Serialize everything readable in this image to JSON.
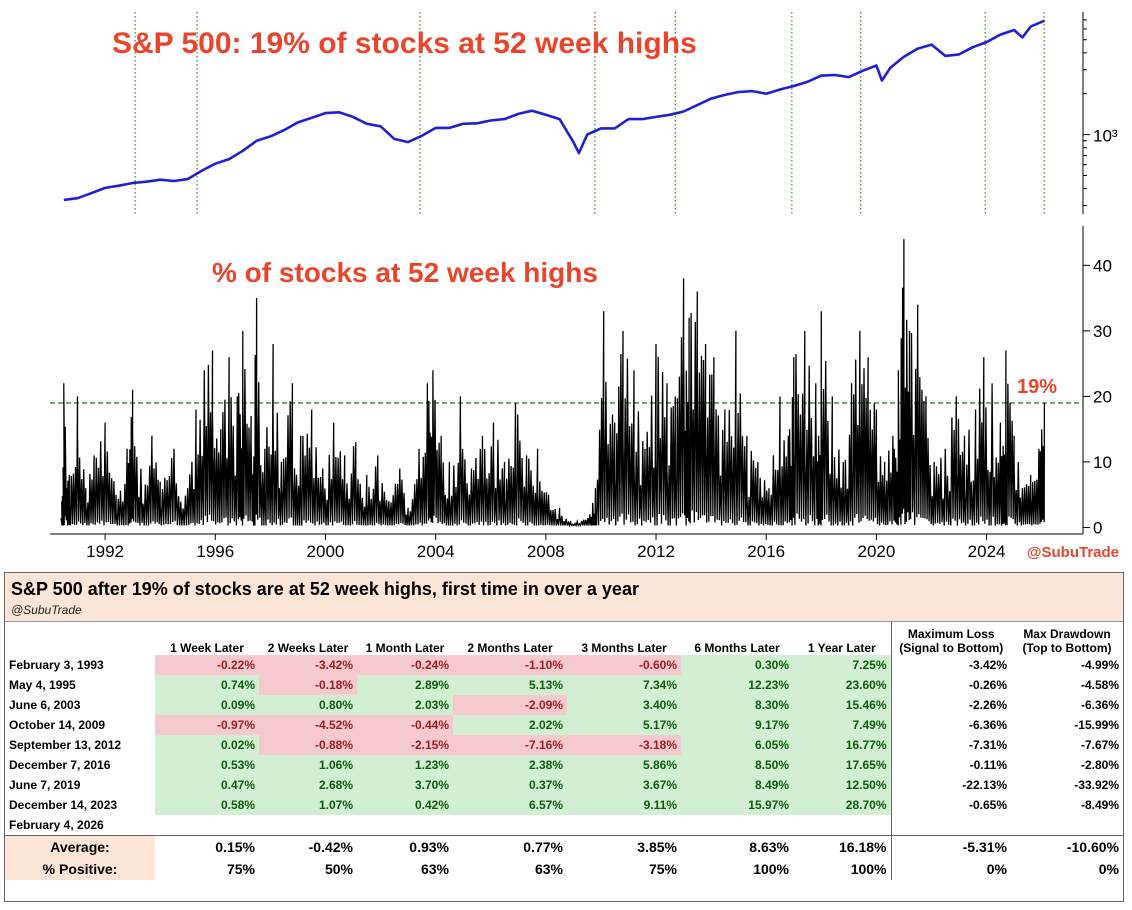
{
  "chart_data": [
    {
      "type": "line",
      "title": "S&P 500: 19% of stocks at 52 week highs",
      "yscale": "log",
      "y_tick_labels": [
        "10³"
      ],
      "signal_years": [
        1993.09,
        1995.34,
        2003.43,
        2009.78,
        2012.7,
        2016.93,
        2019.43,
        2023.95,
        2026.09
      ],
      "x": [
        1990.5,
        1991.0,
        1991.5,
        1992.0,
        1992.5,
        1993.0,
        1993.5,
        1994.0,
        1994.5,
        1995.0,
        1995.5,
        1996.0,
        1996.5,
        1997.0,
        1997.5,
        1998.0,
        1998.5,
        1999.0,
        1999.5,
        2000.0,
        2000.5,
        2001.0,
        2001.5,
        2002.0,
        2002.5,
        2003.0,
        2003.5,
        2004.0,
        2004.5,
        2005.0,
        2005.5,
        2006.0,
        2006.5,
        2007.0,
        2007.5,
        2008.0,
        2008.5,
        2009.0,
        2009.2,
        2009.5,
        2010.0,
        2010.5,
        2011.0,
        2011.5,
        2012.0,
        2012.5,
        2013.0,
        2013.5,
        2014.0,
        2014.5,
        2015.0,
        2015.5,
        2016.0,
        2016.5,
        2017.0,
        2017.5,
        2018.0,
        2018.5,
        2019.0,
        2019.5,
        2020.0,
        2020.2,
        2020.5,
        2021.0,
        2021.5,
        2022.0,
        2022.5,
        2023.0,
        2023.5,
        2024.0,
        2024.5,
        2025.0,
        2025.3,
        2025.6,
        2026.1
      ],
      "values": [
        330,
        340,
        370,
        405,
        420,
        440,
        450,
        465,
        455,
        470,
        540,
        610,
        660,
        760,
        900,
        970,
        1080,
        1230,
        1330,
        1440,
        1460,
        1350,
        1200,
        1150,
        930,
        880,
        980,
        1120,
        1120,
        1200,
        1210,
        1270,
        1300,
        1420,
        1500,
        1400,
        1300,
        880,
        730,
        1000,
        1110,
        1110,
        1300,
        1300,
        1350,
        1400,
        1480,
        1650,
        1840,
        1960,
        2060,
        2090,
        2000,
        2150,
        2280,
        2450,
        2720,
        2750,
        2650,
        2950,
        3230,
        2500,
        3100,
        3750,
        4300,
        4600,
        3800,
        3900,
        4400,
        4800,
        5450,
        5900,
        5200,
        6250,
        6900
      ]
    },
    {
      "type": "line",
      "title": "% of stocks at 52 week highs",
      "y_ticks": [
        0,
        10,
        20,
        30,
        40
      ],
      "ylim": [
        -1,
        46
      ],
      "x_ticks": [
        "1992",
        "1996",
        "2000",
        "2004",
        "2008",
        "2012",
        "2016",
        "2020",
        "2024"
      ],
      "x_range": [
        1990.0,
        2027.5
      ],
      "threshold": 19,
      "threshold_label": "19%",
      "annotation": "@SubuTrade",
      "x": [
        1990.4,
        1990.5,
        1990.7,
        1991.0,
        1991.3,
        1991.6,
        1992.0,
        1992.4,
        1992.8,
        1993.0,
        1993.3,
        1993.7,
        1994.0,
        1994.5,
        1995.0,
        1995.3,
        1995.6,
        1995.9,
        1996.2,
        1996.5,
        1996.8,
        1997.0,
        1997.3,
        1997.5,
        1997.8,
        1998.1,
        1998.4,
        1998.8,
        1999.1,
        1999.5,
        1999.9,
        2000.3,
        2000.7,
        2001.1,
        2001.5,
        2001.9,
        2002.3,
        2002.7,
        2003.0,
        2003.4,
        2003.7,
        2003.9,
        2004.2,
        2004.5,
        2004.9,
        2005.3,
        2005.7,
        2006.1,
        2006.5,
        2006.9,
        2007.3,
        2007.7,
        2008.1,
        2008.5,
        2008.9,
        2009.3,
        2009.6,
        2009.8,
        2010.1,
        2010.5,
        2010.8,
        2011.2,
        2011.6,
        2012.0,
        2012.4,
        2012.7,
        2013.0,
        2013.2,
        2013.5,
        2013.8,
        2014.1,
        2014.5,
        2014.9,
        2015.3,
        2015.7,
        2016.1,
        2016.5,
        2016.8,
        2017.0,
        2017.4,
        2017.8,
        2018.0,
        2018.4,
        2018.8,
        2019.1,
        2019.4,
        2019.7,
        2020.0,
        2020.3,
        2020.6,
        2020.8,
        2021.0,
        2021.2,
        2021.5,
        2021.8,
        2022.1,
        2022.5,
        2022.9,
        2023.2,
        2023.6,
        2023.9,
        2024.2,
        2024.5,
        2024.7,
        2025.0,
        2025.3,
        2025.6,
        2025.9,
        2026.1
      ],
      "values": [
        4,
        22,
        8,
        20,
        6,
        11,
        16,
        5,
        12,
        21,
        9,
        14,
        7,
        12,
        6,
        18,
        24,
        27,
        15,
        26,
        20,
        30,
        17,
        35,
        12,
        28,
        10,
        22,
        14,
        18,
        9,
        16,
        11,
        13,
        8,
        11,
        4,
        9,
        3,
        12,
        22,
        24,
        14,
        10,
        20,
        9,
        14,
        16,
        10,
        19,
        11,
        12,
        5,
        3,
        1,
        1,
        2,
        6,
        33,
        16,
        30,
        24,
        12,
        28,
        22,
        20,
        38,
        32,
        36,
        28,
        26,
        18,
        30,
        14,
        10,
        6,
        20,
        14,
        26,
        30,
        22,
        33,
        20,
        10,
        22,
        30,
        26,
        18,
        10,
        14,
        24,
        44,
        30,
        34,
        20,
        10,
        12,
        20,
        14,
        18,
        26,
        22,
        16,
        27,
        14,
        6,
        8,
        12,
        19
      ]
    },
    {
      "type": "table",
      "title": "S&P 500 after 19% of stocks are at 52 week highs, first time in over a year",
      "subtitle": "@SubuTrade",
      "columns": [
        "",
        "1 Week Later",
        "2 Weeks Later",
        "1 Month Later",
        "2 Months Later",
        "3 Months Later",
        "6 Months Later",
        "1 Year Later",
        "Maximum Loss\n(Signal to Bottom)",
        "Max Drawdown\n(Top to Bottom)"
      ],
      "rows": [
        {
          "date": "February 3, 1993",
          "values": [
            "-0.22%",
            "-3.42%",
            "-0.24%",
            "-1.10%",
            "-0.60%",
            "0.30%",
            "7.25%",
            "-3.42%",
            "-4.99%"
          ]
        },
        {
          "date": "May 4, 1995",
          "values": [
            "0.74%",
            "-0.18%",
            "2.89%",
            "5.13%",
            "7.34%",
            "12.23%",
            "23.60%",
            "-0.26%",
            "-4.58%"
          ]
        },
        {
          "date": "June 6, 2003",
          "values": [
            "0.09%",
            "0.80%",
            "2.03%",
            "-2.09%",
            "3.40%",
            "8.30%",
            "15.46%",
            "-2.26%",
            "-6.36%"
          ]
        },
        {
          "date": "October 14, 2009",
          "values": [
            "-0.97%",
            "-4.52%",
            "-0.44%",
            "2.02%",
            "5.17%",
            "9.17%",
            "7.49%",
            "-6.36%",
            "-15.99%"
          ]
        },
        {
          "date": "September 13, 2012",
          "values": [
            "0.02%",
            "-0.88%",
            "-2.15%",
            "-7.16%",
            "-3.18%",
            "6.05%",
            "16.77%",
            "-7.31%",
            "-7.67%"
          ]
        },
        {
          "date": "December 7, 2016",
          "values": [
            "0.53%",
            "1.06%",
            "1.23%",
            "2.38%",
            "5.86%",
            "8.50%",
            "17.65%",
            "-0.11%",
            "-2.80%"
          ]
        },
        {
          "date": "June 7, 2019",
          "values": [
            "0.47%",
            "2.68%",
            "3.70%",
            "0.37%",
            "3.67%",
            "8.49%",
            "12.50%",
            "-22.13%",
            "-33.92%"
          ]
        },
        {
          "date": "December 14, 2023",
          "values": [
            "0.58%",
            "1.07%",
            "0.42%",
            "6.57%",
            "9.11%",
            "15.97%",
            "28.70%",
            "-0.65%",
            "-8.49%"
          ]
        },
        {
          "date": "February 4, 2026",
          "values": [
            "",
            "",
            "",
            "",
            "",
            "",
            "",
            "",
            ""
          ]
        }
      ],
      "summary": [
        {
          "label": "Average:",
          "values": [
            "0.15%",
            "-0.42%",
            "0.93%",
            "0.77%",
            "3.85%",
            "8.63%",
            "16.18%",
            "-5.31%",
            "-10.60%"
          ]
        },
        {
          "label": "% Positive:",
          "values": [
            "75%",
            "50%",
            "63%",
            "63%",
            "75%",
            "100%",
            "100%",
            "0%",
            "0%"
          ]
        }
      ]
    }
  ],
  "colors": {
    "title_red": "#e8452c",
    "price_line": "#1f1fd6",
    "pct_line": "#000000",
    "threshold_line": "#2e8b2e",
    "positive_cell": "#d3efd3",
    "negative_cell": "#f6c9ce",
    "header_fill": "#fbe5d6"
  }
}
